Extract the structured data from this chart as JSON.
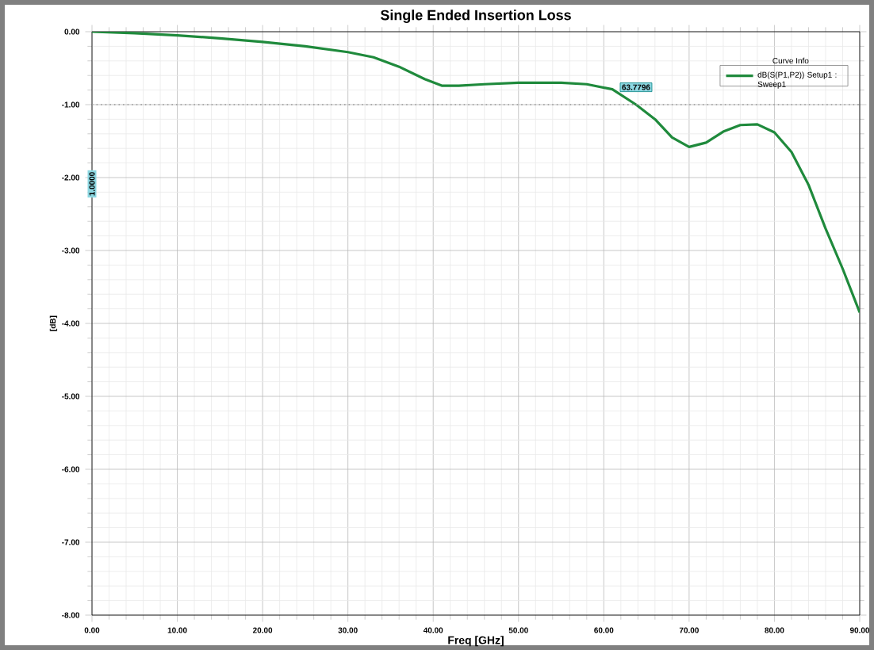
{
  "chart_data": {
    "type": "line",
    "title": "Single Ended Insertion Loss",
    "xlabel": "Freq [GHz]",
    "ylabel": "[dB]",
    "legend_title": "Curve Info",
    "x": [
      0,
      5,
      10,
      15,
      20,
      25,
      30,
      33,
      36,
      39,
      41,
      43,
      46,
      50,
      55,
      58,
      61,
      63.78,
      66,
      68,
      70,
      72,
      74,
      76,
      78,
      80,
      82,
      84,
      86,
      88,
      90
    ],
    "series": [
      {
        "name": "dB(S(P1,P2)) Setup1 : Sweep1",
        "color": "#1f8a3c",
        "values": [
          0,
          -0.02,
          -0.05,
          -0.09,
          -0.14,
          -0.2,
          -0.28,
          -0.35,
          -0.48,
          -0.65,
          -0.74,
          -0.74,
          -0.72,
          -0.7,
          -0.7,
          -0.72,
          -0.79,
          -1.0,
          -1.2,
          -1.45,
          -1.58,
          -1.52,
          -1.37,
          -1.28,
          -1.27,
          -1.38,
          -1.65,
          -2.1,
          -2.7,
          -3.25,
          -3.85
        ]
      }
    ],
    "xlim": [
      0,
      90
    ],
    "ylim": [
      -8,
      0
    ],
    "xticks": [
      {
        "value": 0,
        "label": "0.00"
      },
      {
        "value": 10,
        "label": "10.00"
      },
      {
        "value": 20,
        "label": "20.00"
      },
      {
        "value": 30,
        "label": "30.00"
      },
      {
        "value": 40,
        "label": "40.00"
      },
      {
        "value": 50,
        "label": "50.00"
      },
      {
        "value": 60,
        "label": "60.00"
      },
      {
        "value": 70,
        "label": "70.00"
      },
      {
        "value": 80,
        "label": "80.00"
      },
      {
        "value": 90,
        "label": "90.00"
      }
    ],
    "yticks": [
      {
        "value": 0,
        "label": "0.00"
      },
      {
        "value": -1,
        "label": "-1.00"
      },
      {
        "value": -2,
        "label": "-2.00"
      },
      {
        "value": -3,
        "label": "-3.00"
      },
      {
        "value": -4,
        "label": "-4.00"
      },
      {
        "value": -5,
        "label": "-5.00"
      },
      {
        "value": -6,
        "label": "-6.00"
      },
      {
        "value": -7,
        "label": "-7.00"
      },
      {
        "value": -8,
        "label": "-8.00"
      }
    ],
    "ref_lines": [
      {
        "axis": "y",
        "value": -1,
        "color": "#999999",
        "line_style": "dotted"
      }
    ],
    "annotations": [
      {
        "text": "63.7796",
        "x": 63.78,
        "y": -1.0
      },
      "1.0000"
    ],
    "grid": true,
    "legend": "top right",
    "marker": "none",
    "line_style": "solid"
  }
}
